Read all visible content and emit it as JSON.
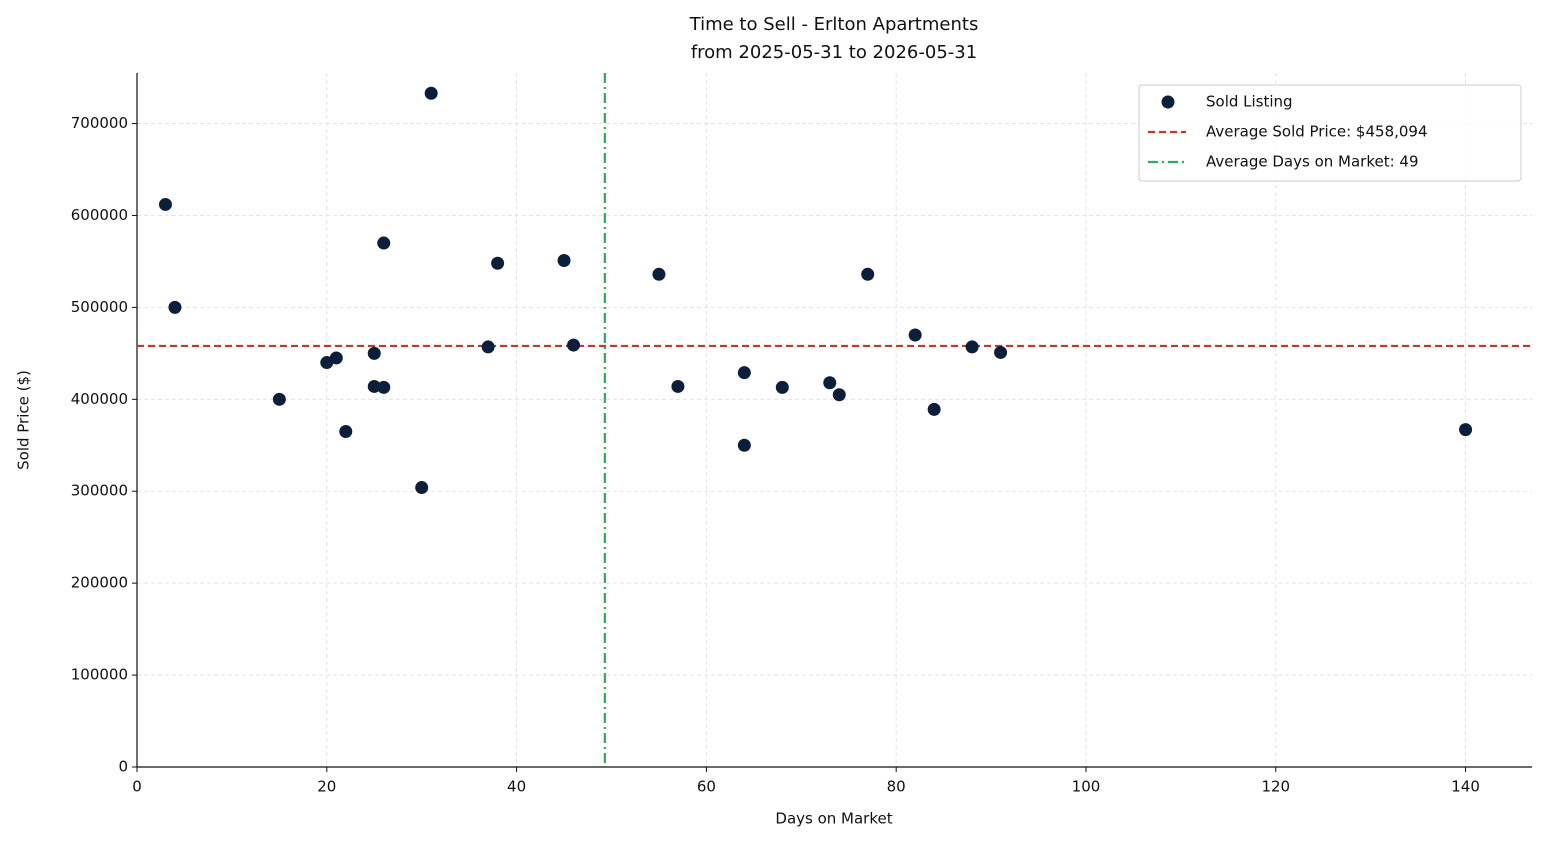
{
  "chart_data": {
    "type": "scatter",
    "title": "Time to Sell - Erlton Apartments",
    "subtitle": "from 2025-05-31 to 2026-05-31",
    "x_label": "Days on Market",
    "y_label": "Sold Price ($)",
    "xlim": [
      0,
      147
    ],
    "xticks": [
      0,
      20,
      40,
      60,
      80,
      100,
      120,
      140
    ],
    "ylim": [
      0,
      755000
    ],
    "yticks": [
      0,
      100000,
      200000,
      300000,
      400000,
      500000,
      600000,
      700000
    ],
    "grid": true,
    "legend": "upper right",
    "series": [
      {
        "name": "Sold Listing",
        "color": "#0b1f3a",
        "x": [
          3,
          4,
          15,
          20,
          21,
          22,
          25,
          25,
          26,
          26,
          30,
          31,
          37,
          38,
          45,
          46,
          55,
          57,
          64,
          64,
          68,
          73,
          74,
          77,
          82,
          84,
          88,
          91,
          140
        ],
        "values": [
          612000,
          500000,
          400000,
          440000,
          445000,
          365000,
          450000,
          414000,
          413000,
          570000,
          304000,
          733000,
          457000,
          548000,
          551000,
          459000,
          536000,
          414000,
          429000,
          350000,
          413000,
          418000,
          405000,
          536000,
          470000,
          389000,
          457000,
          451000,
          367000
        ]
      }
    ],
    "reference_lines": [
      {
        "axis": "y",
        "value": 458094,
        "label": "Average Sold Price: $458,094",
        "color": "#c0392b",
        "style": "dashed"
      },
      {
        "axis": "x",
        "value": 49.3,
        "label": "Average Days on Market: 49",
        "color": "#27ae60",
        "style": "dashdot"
      }
    ]
  }
}
